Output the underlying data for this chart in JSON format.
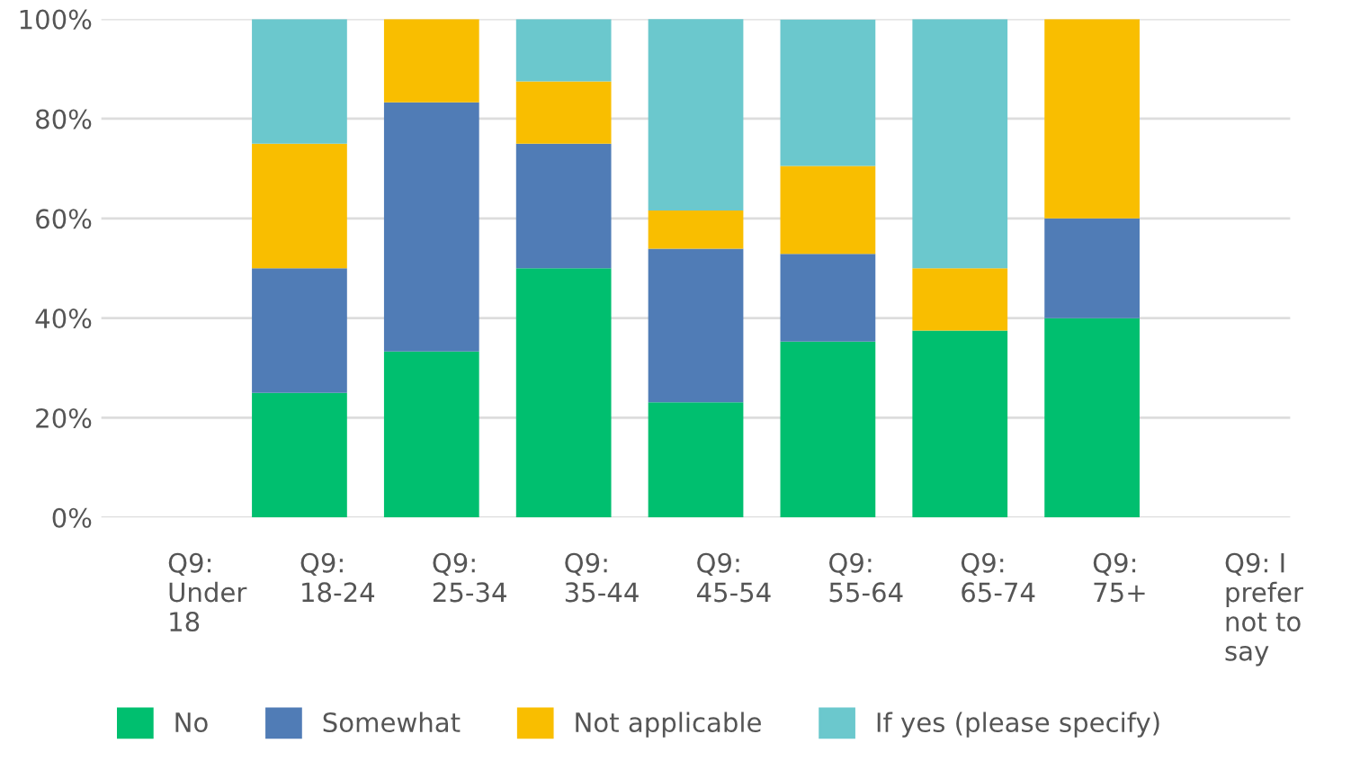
{
  "chart_data": {
    "type": "bar",
    "stacked": true,
    "categories": [
      "Q9: Under 18",
      "Q9: 18-24",
      "Q9: 25-34",
      "Q9: 35-44",
      "Q9: 45-54",
      "Q9: 55-64",
      "Q9: 65-74",
      "Q9: 75+",
      "Q9: I prefer not to say"
    ],
    "series": [
      {
        "name": "No",
        "color": "#00bf6f",
        "values": [
          null,
          25,
          33.3,
          50,
          23.1,
          35.3,
          37.5,
          40,
          null
        ]
      },
      {
        "name": "Somewhat",
        "color": "#507cb6",
        "values": [
          null,
          25,
          50,
          25,
          30.8,
          17.6,
          0,
          20,
          null
        ]
      },
      {
        "name": "Not applicable",
        "color": "#f9be00",
        "values": [
          null,
          25,
          16.7,
          12.5,
          7.7,
          17.6,
          12.5,
          40,
          null
        ]
      },
      {
        "name": "If yes (please specify)",
        "color": "#6bc8cd",
        "values": [
          null,
          25,
          0,
          12.5,
          38.5,
          29.4,
          50,
          0,
          null
        ]
      }
    ],
    "ylim": [
      0,
      100
    ],
    "yticks": [
      {
        "value": 0,
        "label": "0%"
      },
      {
        "value": 20,
        "label": "20%"
      },
      {
        "value": 40,
        "label": "40%"
      },
      {
        "value": 60,
        "label": "60%"
      },
      {
        "value": 80,
        "label": "80%"
      },
      {
        "value": 100,
        "label": "100%"
      }
    ],
    "grid": "y",
    "legend": "bottom"
  }
}
